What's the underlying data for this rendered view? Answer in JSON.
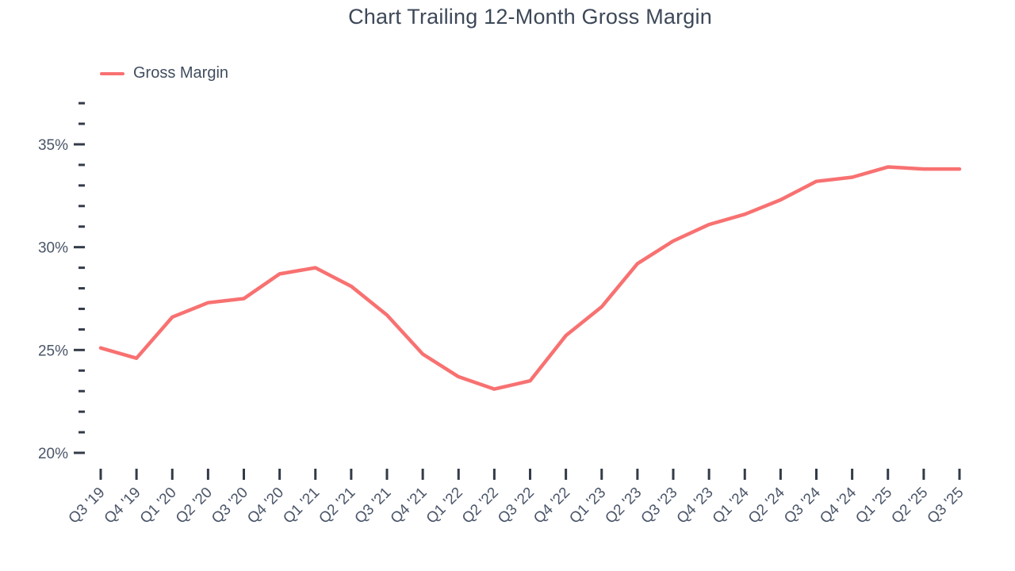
{
  "header": {
    "title": "Chart Trailing 12-Month Gross Margin"
  },
  "legend": {
    "items": [
      {
        "label": "Gross Margin",
        "color": "#f87171"
      }
    ]
  },
  "colors": {
    "line": "#f87171",
    "title_text": "#3d4858",
    "axis_text": "#4a5568",
    "tick": "#333b48"
  },
  "chart_data": {
    "type": "line",
    "title": "Chart Trailing 12-Month Gross Margin",
    "xlabel": "",
    "ylabel": "",
    "categories": [
      "Q3 '19",
      "Q4 '19",
      "Q1 '20",
      "Q2 '20",
      "Q3 '20",
      "Q4 '20",
      "Q1 '21",
      "Q2 '21",
      "Q3 '21",
      "Q4 '21",
      "Q1 '22",
      "Q2 '22",
      "Q3 '22",
      "Q4 '22",
      "Q1 '23",
      "Q2 '23",
      "Q3 '23",
      "Q4 '23",
      "Q1 '24",
      "Q2 '24",
      "Q3 '24",
      "Q4 '24",
      "Q1 '25",
      "Q2 '25",
      "Q3 '25"
    ],
    "series": [
      {
        "name": "Gross Margin",
        "color": "#f87171",
        "values": [
          25.1,
          24.6,
          26.6,
          27.3,
          27.5,
          28.7,
          29.0,
          28.1,
          26.7,
          24.8,
          23.7,
          23.1,
          23.5,
          25.7,
          27.1,
          29.2,
          30.3,
          31.1,
          31.6,
          32.3,
          33.2,
          33.4,
          33.9,
          33.8,
          33.8
        ]
      }
    ],
    "y_axis": {
      "range": [
        20,
        37
      ],
      "major_ticks": [
        20,
        25,
        30,
        35
      ],
      "minor_tick_step": 1,
      "tick_labels": [
        "20%",
        "25%",
        "30%",
        "35%"
      ],
      "tick_label_format": "percent"
    },
    "x_axis": {
      "tick_label_rotation": -45
    },
    "grid": false,
    "legend_position": "top-left"
  }
}
